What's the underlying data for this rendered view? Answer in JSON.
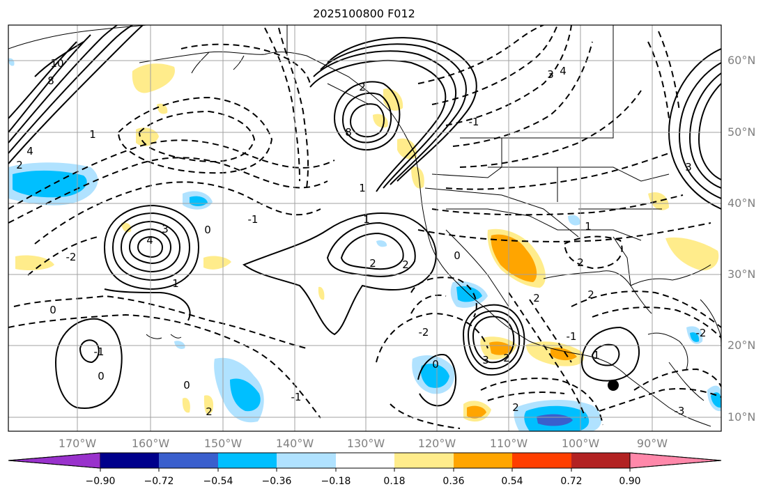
{
  "title": "2025100800 F012",
  "map": {
    "lat_labels": [
      "60°N",
      "50°N",
      "40°N",
      "30°N",
      "20°N",
      "10°N"
    ],
    "lon_labels": [
      "170°W",
      "160°W",
      "150°W",
      "140°W",
      "130°W",
      "120°W",
      "110°W",
      "100°W",
      "90°W"
    ],
    "contour_labels": [
      "10",
      "8",
      "4",
      "2",
      "1",
      "8",
      "2",
      "1",
      "3",
      "4",
      "4",
      "3",
      "0",
      "1",
      "3",
      "-1",
      "2",
      "2",
      "0",
      "1",
      "1",
      "-1",
      "-2",
      "3",
      "2",
      "2",
      "2",
      "2",
      "0",
      "-2",
      "-1",
      "0",
      "0",
      "-1",
      "2",
      "0",
      "1",
      "2",
      "-1",
      "-2",
      "-3"
    ]
  },
  "colorbar": {
    "ticks": [
      "−0.90",
      "−0.72",
      "−0.54",
      "−0.36",
      "−0.18",
      "0.18",
      "0.36",
      "0.54",
      "0.72",
      "0.90"
    ],
    "colors": [
      "#9932cc",
      "#00008b",
      "#3a5fcd",
      "#00bfff",
      "#b0e2ff",
      "#ffffff",
      "#ffec8b",
      "#ffa500",
      "#ff3e00",
      "#b22222",
      "#ff88aa"
    ]
  }
}
